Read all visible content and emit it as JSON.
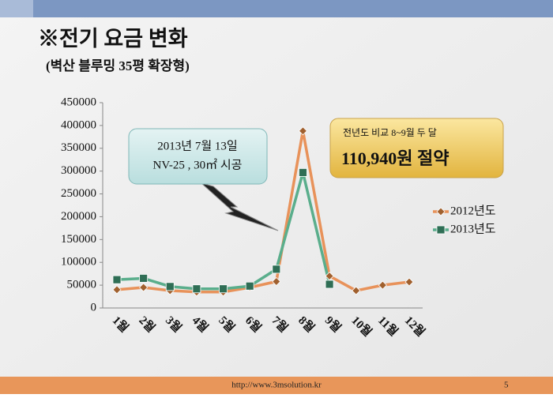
{
  "header": {
    "title": "※전기 요금 변화",
    "subtitle": "(벽산 블루밍 35평 확장형)"
  },
  "chart_data": {
    "type": "line",
    "categories": [
      "1월",
      "2월",
      "3월",
      "4월",
      "5월",
      "6월",
      "7월",
      "8월",
      "9월",
      "10월",
      "11월",
      "12월"
    ],
    "series": [
      {
        "name": "2012년도",
        "color": "#e8925a",
        "values": [
          40000,
          45000,
          38000,
          35000,
          35000,
          45000,
          58000,
          388000,
          70000,
          38000,
          50000,
          57000
        ]
      },
      {
        "name": "2013년도",
        "color": "#5aae8c",
        "values": [
          62000,
          65000,
          47000,
          42000,
          42000,
          48000,
          85000,
          297000,
          52000,
          null,
          null,
          null
        ]
      }
    ],
    "ylim": [
      0,
      450000
    ],
    "yticks": [
      0,
      50000,
      100000,
      150000,
      200000,
      250000,
      300000,
      350000,
      400000,
      450000
    ],
    "legend": "right"
  },
  "callout": {
    "line1": "2013년 7월 13일",
    "line2": "NV-25 , 30㎡ 시공"
  },
  "savings": {
    "label": "전년도 비교 8~9월 두 달",
    "amount": "110,940원 절약"
  },
  "footer": {
    "url": "http://www.3msolution.kr",
    "page": "5"
  }
}
